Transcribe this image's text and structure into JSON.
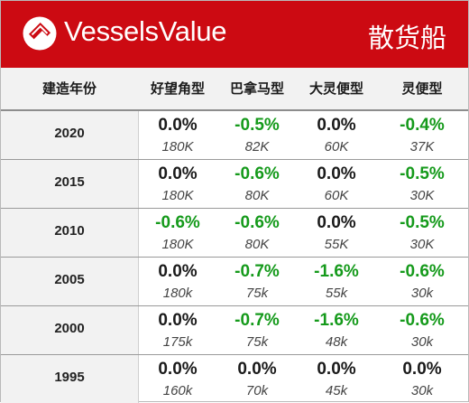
{
  "header": {
    "brand": "VesselsValue",
    "logo_icon": "vesselsvalue-logo-icon",
    "title": "散货船",
    "bg_color": "#cc0a12"
  },
  "columns": {
    "year": "建造年份",
    "c1": "好望角型",
    "c2": "巴拿马型",
    "c3": "大灵便型",
    "c4": "灵便型"
  },
  "colors": {
    "negative": "#159a1b",
    "zero": "#1a1a1a"
  },
  "rows": [
    {
      "year": "2020",
      "cells": [
        {
          "pct": "0.0%",
          "val": "180K"
        },
        {
          "pct": "-0.5%",
          "val": "82K"
        },
        {
          "pct": "0.0%",
          "val": "60K"
        },
        {
          "pct": "-0.4%",
          "val": "37K"
        }
      ]
    },
    {
      "year": "2015",
      "cells": [
        {
          "pct": "0.0%",
          "val": "180K"
        },
        {
          "pct": "-0.6%",
          "val": "80K"
        },
        {
          "pct": "0.0%",
          "val": "60K"
        },
        {
          "pct": "-0.5%",
          "val": "30K"
        }
      ]
    },
    {
      "year": "2010",
      "cells": [
        {
          "pct": "-0.6%",
          "val": "180K"
        },
        {
          "pct": "-0.6%",
          "val": "80K"
        },
        {
          "pct": "0.0%",
          "val": "55K"
        },
        {
          "pct": "-0.5%",
          "val": "30K"
        }
      ]
    },
    {
      "year": "2005",
      "cells": [
        {
          "pct": "0.0%",
          "val": "180k"
        },
        {
          "pct": "-0.7%",
          "val": "75k"
        },
        {
          "pct": "-1.6%",
          "val": "55k"
        },
        {
          "pct": "-0.6%",
          "val": "30k"
        }
      ]
    },
    {
      "year": "2000",
      "cells": [
        {
          "pct": "0.0%",
          "val": "175k"
        },
        {
          "pct": "-0.7%",
          "val": "75k"
        },
        {
          "pct": "-1.6%",
          "val": "48k"
        },
        {
          "pct": "-0.6%",
          "val": "30k"
        }
      ]
    },
    {
      "year": "1995",
      "cells": [
        {
          "pct": "0.0%",
          "val": "160k"
        },
        {
          "pct": "0.0%",
          "val": "70k"
        },
        {
          "pct": "0.0%",
          "val": "45k"
        },
        {
          "pct": "0.0%",
          "val": "30k"
        }
      ]
    }
  ]
}
